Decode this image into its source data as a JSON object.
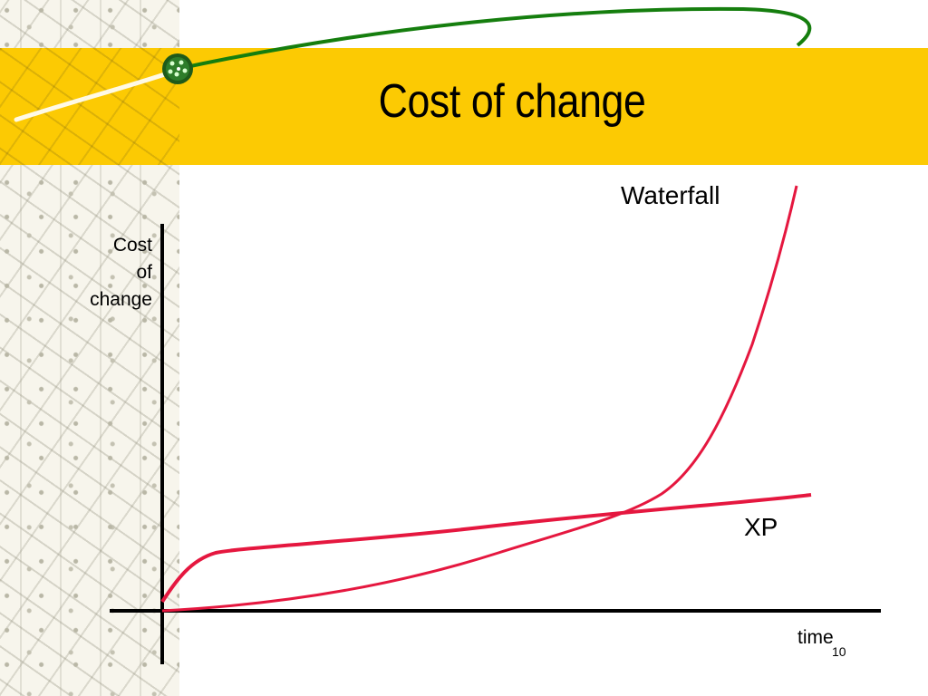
{
  "slide": {
    "title": "Cost of change",
    "page_number": "10"
  },
  "chart_data": {
    "type": "line",
    "title": "",
    "xlabel": "time",
    "ylabel": [
      "Cost",
      "of",
      "change"
    ],
    "series": [
      {
        "name": "Waterfall",
        "color": "#e5173f"
      },
      {
        "name": "XP",
        "color": "#e5173f"
      }
    ],
    "colors": {
      "band": "#fcca03",
      "swoosh": "#157e0e",
      "axes": "#000000"
    }
  }
}
